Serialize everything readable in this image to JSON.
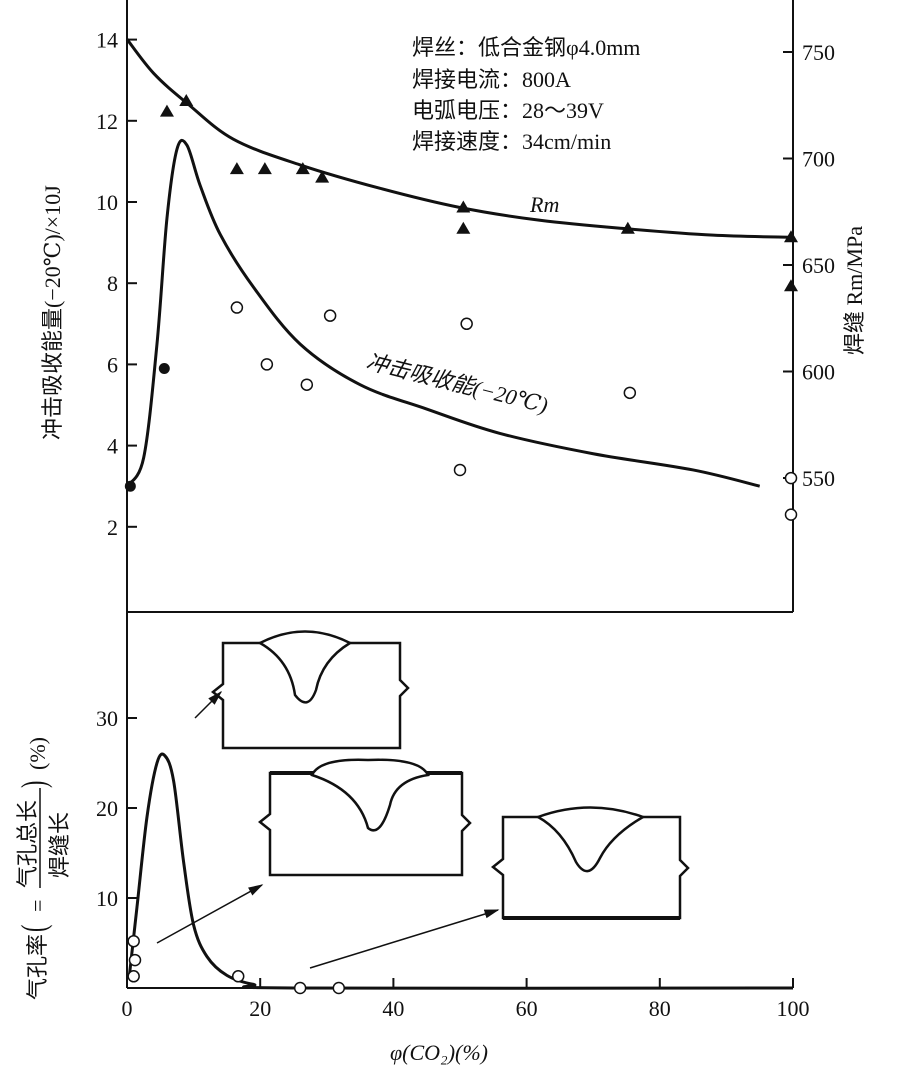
{
  "chart_data": [
    {
      "type": "line",
      "panel": "top",
      "notes": [
        "焊丝：低合金钢φ4.0mm",
        "焊接电流：800A",
        "电弧电压：28～39V",
        "焊接速度：34cm/min"
      ],
      "ylabel_left": "冲击吸收能量(−20℃)/×10J",
      "ylabel_right": "焊缝 Rm/MPa",
      "xlim": [
        0,
        100
      ],
      "ylim_left": [
        0,
        14.7
      ],
      "ylim_right": [
        500,
        775
      ],
      "yticks_left": [
        "2",
        "4",
        "6",
        "8",
        "10",
        "12",
        "14"
      ],
      "yticks_right": [
        "550",
        "600",
        "650",
        "700",
        "750"
      ],
      "series": [
        {
          "name": "Rm",
          "label": "Rm",
          "axis": "right",
          "marker": "filled-triangle",
          "curve": [
            [
              0,
              756
            ],
            [
              4,
              740
            ],
            [
              9,
              726
            ],
            [
              16,
              709
            ],
            [
              26,
              697
            ],
            [
              38,
              686
            ],
            [
              50,
              677
            ],
            [
              62,
              671
            ],
            [
              75,
              667
            ],
            [
              88,
              664
            ],
            [
              100,
              663
            ]
          ],
          "points": [
            [
              6,
              722
            ],
            [
              8.9,
              727
            ],
            [
              16.5,
              695
            ],
            [
              20.7,
              695
            ],
            [
              26.4,
              695
            ],
            [
              29.3,
              691
            ],
            [
              50.5,
              677
            ],
            [
              50.5,
              667
            ],
            [
              75.2,
              667
            ],
            [
              99.7,
              663
            ],
            [
              99.7,
              640
            ]
          ]
        },
        {
          "name": "impact",
          "label": "冲击吸收能(−20℃)",
          "axis": "left",
          "marker": "circle",
          "curve": [
            [
              0,
              3.0
            ],
            [
              2.5,
              3.7
            ],
            [
              4.5,
              6.5
            ],
            [
              6,
              9.6
            ],
            [
              7.5,
              11.3
            ],
            [
              9,
              11.4
            ],
            [
              11,
              10.4
            ],
            [
              14,
              9.2
            ],
            [
              19,
              7.9
            ],
            [
              26,
              6.5
            ],
            [
              35,
              5.5
            ],
            [
              45,
              4.9
            ],
            [
              56,
              4.3
            ],
            [
              70,
              3.8
            ],
            [
              85,
              3.4
            ],
            [
              95,
              3.0
            ]
          ],
          "points_filled": [
            [
              0.5,
              3.0
            ],
            [
              5.6,
              5.9
            ]
          ],
          "points_open": [
            [
              16.5,
              7.4
            ],
            [
              21,
              6.0
            ],
            [
              27,
              5.5
            ],
            [
              30.5,
              7.2
            ],
            [
              51,
              7.0
            ],
            [
              50,
              3.4
            ],
            [
              75.5,
              5.3
            ],
            [
              100,
              3.2
            ],
            [
              100,
              2.3
            ]
          ]
        }
      ]
    },
    {
      "type": "line",
      "panel": "bottom",
      "ylabel_parts": {
        "main": "气孔率",
        "open": "(",
        "eq": "=",
        "numerator": "气孔总长",
        "denominator": "焊缝长",
        "close": ")",
        "unit": "(%)"
      },
      "xlabel": "φ(CO₂)(%)",
      "xlim": [
        0,
        100
      ],
      "ylim": [
        0,
        40
      ],
      "xticks": [
        "0",
        "20",
        "40",
        "60",
        "80",
        "100"
      ],
      "yticks": [
        "10",
        "20",
        "30"
      ],
      "series": [
        {
          "name": "porosity",
          "marker": "circle",
          "curve": [
            [
              0.3,
              1
            ],
            [
              1.5,
              9
            ],
            [
              3,
              19
            ],
            [
              4.5,
              25
            ],
            [
              5.7,
              25.8
            ],
            [
              7,
              23
            ],
            [
              8.5,
              14
            ],
            [
              10,
              7
            ],
            [
              12,
              3.5
            ],
            [
              15,
              1.4
            ],
            [
              19,
              0.4
            ],
            [
              25,
              0
            ],
            [
              100,
              0
            ]
          ],
          "points": [
            [
              1,
              5.2
            ],
            [
              1.2,
              3.1
            ],
            [
              1,
              1.3
            ],
            [
              16.7,
              1.3
            ],
            [
              26,
              0
            ],
            [
              31.8,
              0
            ]
          ]
        }
      ]
    }
  ]
}
